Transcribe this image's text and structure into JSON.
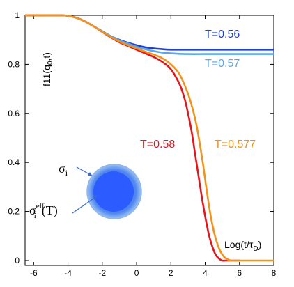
{
  "chart_data": {
    "type": "line",
    "ylabel": "f11(q",
    "ylabel_sub": "0",
    "ylabel_suffix": ",t)",
    "xlabel": "Log(t/τ",
    "xlabel_sub": "D",
    "xlabel_suffix": ")",
    "xlim": [
      -6.5,
      8
    ],
    "ylim": [
      -0.02,
      1.0
    ],
    "xticks": [
      -6,
      -4,
      -2,
      0,
      2,
      4,
      6,
      8
    ],
    "yticks": [
      0,
      0.2,
      0.4,
      0.6,
      0.8,
      1
    ],
    "ytick_labels": [
      "0",
      "0.2",
      "0.4",
      "0.6",
      "0.8",
      "1"
    ],
    "series": [
      {
        "name": "T=0.56",
        "color": "#1f3fd6",
        "x": [
          -6.5,
          -4.5,
          -4.0,
          -3.5,
          -3.0,
          -2.5,
          -2.0,
          -1.5,
          -1.0,
          -0.5,
          0,
          0.5,
          1.0,
          1.5,
          2.0,
          3.0,
          4.0,
          5.0,
          6.0,
          7.0,
          8.0
        ],
        "y": [
          1.0,
          1.0,
          0.998,
          0.99,
          0.975,
          0.955,
          0.935,
          0.915,
          0.9,
          0.888,
          0.878,
          0.87,
          0.865,
          0.862,
          0.86,
          0.86,
          0.86,
          0.86,
          0.86,
          0.86,
          0.86
        ]
      },
      {
        "name": "T=0.57",
        "color": "#5aa6e8",
        "x": [
          -6.5,
          -4.5,
          -4.0,
          -3.5,
          -3.0,
          -2.5,
          -2.0,
          -1.5,
          -1.0,
          -0.5,
          0,
          0.5,
          1.0,
          1.5,
          2.0,
          2.5,
          3.0,
          4.0,
          5.0,
          6.0,
          7.0,
          8.0
        ],
        "y": [
          1.0,
          1.0,
          0.998,
          0.99,
          0.975,
          0.955,
          0.935,
          0.915,
          0.898,
          0.885,
          0.872,
          0.862,
          0.854,
          0.848,
          0.845,
          0.843,
          0.842,
          0.842,
          0.842,
          0.842,
          0.842,
          0.842
        ]
      },
      {
        "name": "T=0.58",
        "color": "#e8141c",
        "x": [
          -6.5,
          -4.5,
          -4.0,
          -3.5,
          -3.0,
          -2.5,
          -2.0,
          -1.5,
          -1.0,
          -0.5,
          0,
          0.5,
          1.0,
          1.5,
          2.0,
          2.5,
          2.8,
          3.0,
          3.2,
          3.4,
          3.6,
          3.8,
          4.0,
          4.2,
          4.4,
          4.6,
          4.8,
          5.0,
          5.2,
          5.5,
          6.0
        ],
        "y": [
          1.0,
          1.0,
          0.998,
          0.99,
          0.975,
          0.955,
          0.932,
          0.91,
          0.89,
          0.875,
          0.86,
          0.845,
          0.83,
          0.81,
          0.78,
          0.72,
          0.66,
          0.6,
          0.53,
          0.44,
          0.35,
          0.26,
          0.18,
          0.11,
          0.06,
          0.025,
          0.008,
          0.0,
          0.0,
          0.0,
          0.0
        ]
      },
      {
        "name": "T=0.577",
        "color": "#f39218",
        "x": [
          -6.5,
          -4.5,
          -4.0,
          -3.5,
          -3.0,
          -2.5,
          -2.0,
          -1.5,
          -1.0,
          -0.5,
          0,
          0.5,
          1.0,
          1.5,
          2.0,
          2.5,
          3.0,
          3.3,
          3.5,
          3.7,
          3.9,
          4.1,
          4.3,
          4.5,
          4.7,
          4.9,
          5.1,
          5.3,
          5.5,
          5.8,
          6.5,
          8.0
        ],
        "y": [
          1.0,
          1.0,
          0.998,
          0.99,
          0.975,
          0.955,
          0.933,
          0.912,
          0.893,
          0.878,
          0.865,
          0.852,
          0.84,
          0.825,
          0.8,
          0.76,
          0.68,
          0.61,
          0.55,
          0.47,
          0.38,
          0.28,
          0.19,
          0.12,
          0.07,
          0.035,
          0.015,
          0.005,
          0.0,
          0.0,
          0.0,
          0.0
        ]
      }
    ],
    "annotations": {
      "sigma_i": "σ",
      "sigma_i_sub": "i",
      "sigma_eff": "σ",
      "sigma_eff_sup": "eff",
      "sigma_eff_sub": "i",
      "sigma_eff_suffix": "(T)"
    },
    "colors": {
      "outer_circle": "#4b8ae0",
      "inner_circle": "#2c5cff"
    }
  }
}
